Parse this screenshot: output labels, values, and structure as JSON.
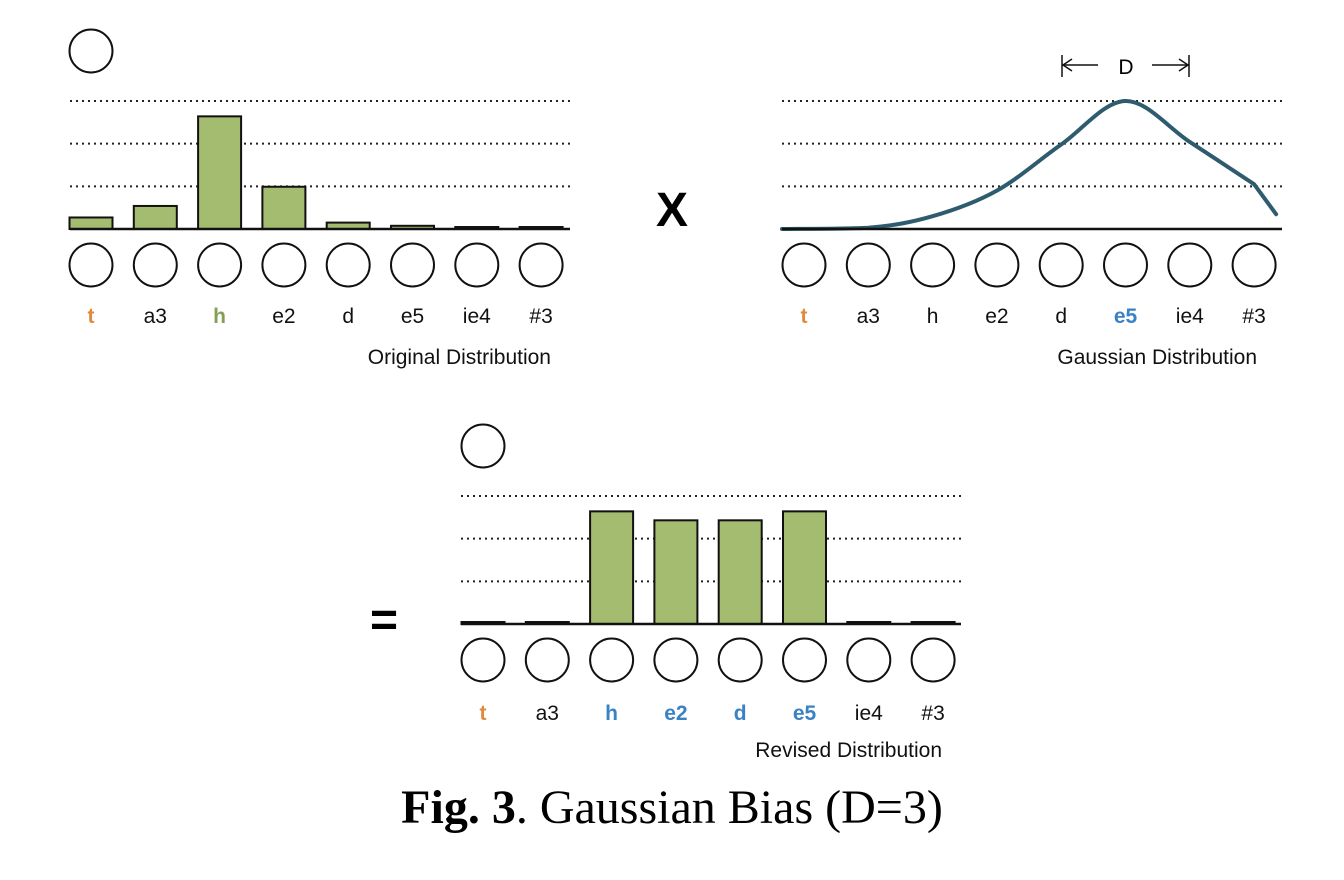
{
  "colors": {
    "bar_fill": "#a3bc6f",
    "curve": "#2e5c6e",
    "orange": "#e08a3c",
    "green": "#85a054",
    "blue": "#3a82c4",
    "black": "#111111"
  },
  "tokens": [
    "t",
    "a3",
    "h",
    "e2",
    "d",
    "e5",
    "ie4",
    "#3"
  ],
  "panels": {
    "original": {
      "caption": "Original Distribution",
      "token_colors": [
        "orange",
        "black",
        "green",
        "black",
        "black",
        "black",
        "black",
        "black"
      ],
      "token_bold": [
        true,
        false,
        true,
        false,
        false,
        false,
        false,
        false
      ]
    },
    "gaussian": {
      "caption": "Gaussian Distribution",
      "d_label": "D",
      "token_colors": [
        "orange",
        "black",
        "black",
        "black",
        "black",
        "blue",
        "black",
        "black"
      ],
      "token_bold": [
        true,
        false,
        false,
        false,
        false,
        true,
        false,
        false
      ]
    },
    "revised": {
      "caption": "Revised Distribution",
      "token_colors": [
        "orange",
        "black",
        "blue",
        "blue",
        "blue",
        "blue",
        "black",
        "black"
      ],
      "token_bold": [
        true,
        false,
        true,
        true,
        true,
        true,
        false,
        false
      ]
    }
  },
  "operators": {
    "multiply": "X",
    "equals": "="
  },
  "figure_caption": {
    "label": "Fig. 3",
    "text": ". Gaussian Bias (D=3)"
  },
  "chart_data": [
    {
      "type": "bar",
      "categories": [
        "t",
        "a3",
        "h",
        "e2",
        "d",
        "e5",
        "ie4",
        "#3"
      ],
      "values": [
        0.09,
        0.18,
        0.88,
        0.33,
        0.05,
        0.025,
        0.01,
        0.01
      ],
      "ylim": [
        0,
        1
      ],
      "grid": true,
      "xlabel": "Original Distribution"
    },
    {
      "type": "line",
      "categories": [
        "t",
        "a3",
        "h",
        "e2",
        "d",
        "e5",
        "ie4",
        "#3"
      ],
      "x": [
        0,
        1,
        2,
        3,
        4,
        5,
        6,
        7
      ],
      "values": [
        0.0,
        0.01,
        0.1,
        0.3,
        0.66,
        1.0,
        0.68,
        0.35
      ],
      "ylim": [
        0,
        1
      ],
      "grid": true,
      "xlabel": "Gaussian Distribution"
    },
    {
      "type": "bar",
      "categories": [
        "t",
        "a3",
        "h",
        "e2",
        "d",
        "e5",
        "ie4",
        "#3"
      ],
      "values": [
        0.01,
        0.01,
        0.88,
        0.81,
        0.81,
        0.88,
        0.01,
        0.01
      ],
      "ylim": [
        0,
        1
      ],
      "grid": true,
      "xlabel": "Revised Distribution"
    }
  ]
}
